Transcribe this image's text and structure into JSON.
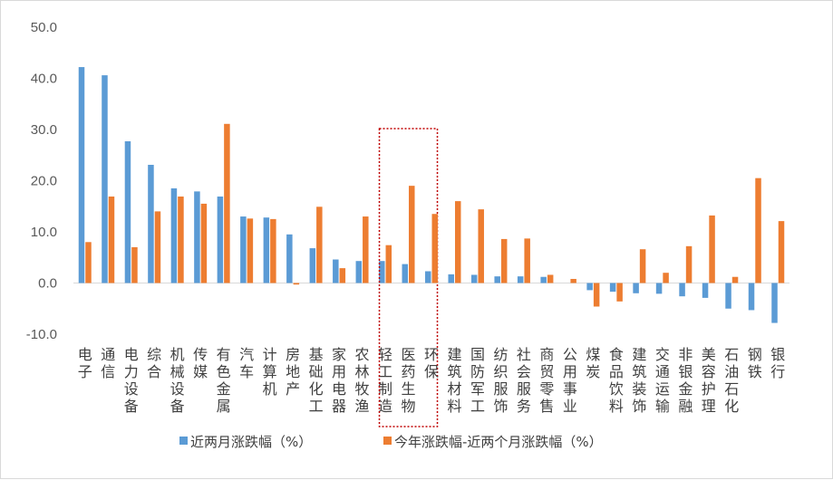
{
  "chart_data": {
    "type": "bar",
    "title": "",
    "xlabel": "",
    "ylabel": "",
    "ylim": [
      -10,
      50
    ],
    "yticks": [
      "50.0",
      "40.0",
      "30.0",
      "20.0",
      "10.0",
      "0.0",
      "-10.0"
    ],
    "ytick_values": [
      50,
      40,
      30,
      20,
      10,
      0,
      -10
    ],
    "grid": false,
    "legend_position": "bottom",
    "categories": [
      "电子",
      "通信",
      "电力设备",
      "综合",
      "机械设备",
      "传媒",
      "有色金属",
      "汽车",
      "计算机",
      "房地产",
      "基础化工",
      "家用电器",
      "农林牧渔",
      "轻工制造",
      "医药生物",
      "环保",
      "建筑材料",
      "国防军工",
      "纺织服饰",
      "社会服务",
      "商贸零售",
      "公用事业",
      "煤炭",
      "食品饮料",
      "建筑装饰",
      "交通运输",
      "非银金融",
      "美容护理",
      "石油石化",
      "钢铁",
      "银行"
    ],
    "highlighted_category": "医药生物",
    "series": [
      {
        "name": "近两月涨跌幅（%）",
        "color": "#5b9bd5",
        "values": [
          42.2,
          40.6,
          27.7,
          23.1,
          18.5,
          17.9,
          16.9,
          13.0,
          12.8,
          9.5,
          6.8,
          4.6,
          4.3,
          4.3,
          3.7,
          2.3,
          1.7,
          1.6,
          1.3,
          1.3,
          1.2,
          0.0,
          -1.4,
          -1.7,
          -2.0,
          -2.1,
          -2.6,
          -2.9,
          -5.0,
          -5.3,
          -7.8
        ]
      },
      {
        "name": "今年涨跌幅-近两个月涨跌幅（%）",
        "color": "#ed7d31",
        "values": [
          8.0,
          16.9,
          7.0,
          14.0,
          16.9,
          15.5,
          31.1,
          12.6,
          12.5,
          -0.3,
          14.9,
          2.9,
          13.0,
          7.4,
          19.0,
          13.5,
          16.0,
          14.4,
          8.6,
          8.7,
          1.6,
          0.8,
          -4.6,
          -3.6,
          6.6,
          2.0,
          7.2,
          13.2,
          1.2,
          20.5,
          12.1
        ]
      }
    ]
  }
}
